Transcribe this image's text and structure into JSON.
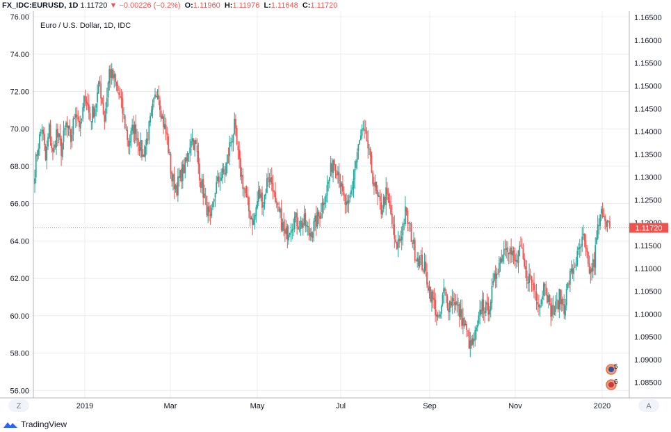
{
  "header": {
    "symbol": "FX_IDC:EURUSD, 1D",
    "last": "1.11720",
    "arrow": "▼",
    "change": "−0.00226 (−0.2%)",
    "o_label": "O:",
    "o": "1.11960",
    "h_label": "H:",
    "h": "1.11976",
    "l_label": "L:",
    "l": "1.11648",
    "c_label": "C:",
    "c": "1.11720"
  },
  "chart_title": "Euro / U.S. Dollar, 1D, IDC",
  "footer": {
    "brand": "TradingView",
    "logo_icon": "tradingview-logo-icon"
  },
  "axis_buttons": {
    "left": "Z",
    "right": "A"
  },
  "event_badges": [
    {
      "label": "5",
      "icon": "flag-eu-icon"
    },
    {
      "label": "6",
      "icon": "flag-us-icon"
    }
  ],
  "colors": {
    "up": "#26a69a",
    "down": "#ef5350",
    "grid": "#e8ecf1",
    "price_line": "#ef5350",
    "text": "#131722"
  },
  "chart_data": {
    "type": "candlestick",
    "title": "Euro / U.S. Dollar, 1D, IDC",
    "left_axis": {
      "ticks": [
        "76.00",
        "74.00",
        "72.00",
        "70.00",
        "68.00",
        "66.00",
        "64.00",
        "62.00",
        "60.00",
        "58.00",
        "56.00"
      ],
      "range": [
        55.6,
        76.3
      ]
    },
    "right_axis": {
      "ticks": [
        "1.16500",
        "1.16000",
        "1.15500",
        "1.15000",
        "1.14500",
        "1.14000",
        "1.13500",
        "1.13000",
        "1.12500",
        "1.12000",
        "1.11500",
        "1.11000",
        "1.10500",
        "1.10000",
        "1.09500",
        "1.09000",
        "1.08500"
      ],
      "range": [
        1.0816,
        1.1664
      ]
    },
    "x_ticks": [
      "2019",
      "Mar",
      "May",
      "Jul",
      "Sep",
      "Nov",
      "2020"
    ],
    "last_price": {
      "left_value": 64.7,
      "label": "1.11720"
    },
    "grid": true,
    "approx_close_path": [
      [
        0,
        67.8
      ],
      [
        3,
        69.2
      ],
      [
        6,
        70.1
      ],
      [
        9,
        68.3
      ],
      [
        12,
        70.0
      ],
      [
        15,
        68.6
      ],
      [
        18,
        69.8
      ],
      [
        22,
        68.9
      ],
      [
        26,
        70.2
      ],
      [
        30,
        69.4
      ],
      [
        34,
        71.1
      ],
      [
        38,
        70.0
      ],
      [
        42,
        71.9
      ],
      [
        46,
        70.5
      ],
      [
        50,
        71.2
      ],
      [
        54,
        72.4
      ],
      [
        58,
        70.5
      ],
      [
        62,
        73.1
      ],
      [
        66,
        72.6
      ],
      [
        70,
        71.8
      ],
      [
        74,
        70.6
      ],
      [
        78,
        69.2
      ],
      [
        82,
        70.1
      ],
      [
        86,
        69.4
      ],
      [
        90,
        68.5
      ],
      [
        94,
        69.7
      ],
      [
        98,
        71.0
      ],
      [
        102,
        72.2
      ],
      [
        106,
        70.6
      ],
      [
        110,
        69.5
      ],
      [
        114,
        67.3
      ],
      [
        118,
        66.9
      ],
      [
        122,
        67.6
      ],
      [
        126,
        68.2
      ],
      [
        130,
        69.6
      ],
      [
        134,
        69.0
      ],
      [
        138,
        67.2
      ],
      [
        142,
        66.1
      ],
      [
        146,
        64.9
      ],
      [
        150,
        66.8
      ],
      [
        154,
        67.4
      ],
      [
        158,
        67.7
      ],
      [
        162,
        69.1
      ],
      [
        166,
        70.1
      ],
      [
        170,
        68.0
      ],
      [
        174,
        66.8
      ],
      [
        178,
        65.6
      ],
      [
        182,
        65.0
      ],
      [
        186,
        66.5
      ],
      [
        190,
        66.1
      ],
      [
        194,
        67.5
      ],
      [
        198,
        67.0
      ],
      [
        200,
        65.8
      ],
      [
        204,
        65.3
      ],
      [
        208,
        64.2
      ],
      [
        212,
        64.8
      ],
      [
        216,
        65.2
      ],
      [
        220,
        64.9
      ],
      [
        224,
        65.0
      ],
      [
        228,
        64.4
      ],
      [
        232,
        64.8
      ],
      [
        236,
        65.3
      ],
      [
        240,
        66.2
      ],
      [
        244,
        67.1
      ],
      [
        248,
        68.4
      ],
      [
        252,
        67.8
      ],
      [
        256,
        66.4
      ],
      [
        260,
        65.6
      ],
      [
        264,
        67.0
      ],
      [
        268,
        68.7
      ],
      [
        272,
        69.8
      ],
      [
        276,
        69.4
      ],
      [
        279,
        68.1
      ],
      [
        282,
        67.1
      ],
      [
        285,
        66.2
      ],
      [
        288,
        65.7
      ],
      [
        292,
        66.5
      ],
      [
        296,
        65.4
      ],
      [
        300,
        63.6
      ],
      [
        304,
        64.2
      ],
      [
        308,
        65.5
      ],
      [
        312,
        64.6
      ],
      [
        316,
        63.4
      ],
      [
        320,
        63.0
      ],
      [
        324,
        62.5
      ],
      [
        328,
        61.4
      ],
      [
        332,
        60.6
      ],
      [
        336,
        59.6
      ],
      [
        340,
        61.3
      ],
      [
        344,
        60.6
      ],
      [
        348,
        61.0
      ],
      [
        352,
        60.3
      ],
      [
        356,
        59.7
      ],
      [
        360,
        58.9
      ],
      [
        362,
        58.3
      ],
      [
        364,
        58.5
      ],
      [
        368,
        59.3
      ],
      [
        372,
        60.7
      ],
      [
        376,
        60.2
      ],
      [
        380,
        61.2
      ],
      [
        384,
        62.5
      ],
      [
        388,
        63.2
      ],
      [
        392,
        64.0
      ],
      [
        396,
        63.3
      ],
      [
        400,
        62.8
      ],
      [
        404,
        63.5
      ],
      [
        408,
        62.2
      ],
      [
        412,
        62.0
      ],
      [
        416,
        61.3
      ],
      [
        420,
        60.7
      ],
      [
        424,
        61.9
      ],
      [
        428,
        60.4
      ],
      [
        432,
        60.2
      ],
      [
        436,
        61.0
      ],
      [
        440,
        60.5
      ],
      [
        444,
        61.9
      ],
      [
        448,
        62.6
      ],
      [
        452,
        63.3
      ],
      [
        456,
        64.1
      ],
      [
        460,
        62.6
      ],
      [
        462,
        62.3
      ],
      [
        465,
        62.9
      ],
      [
        468,
        64.6
      ],
      [
        472,
        65.7
      ],
      [
        476,
        65.0
      ],
      [
        478,
        64.6
      ]
    ]
  }
}
